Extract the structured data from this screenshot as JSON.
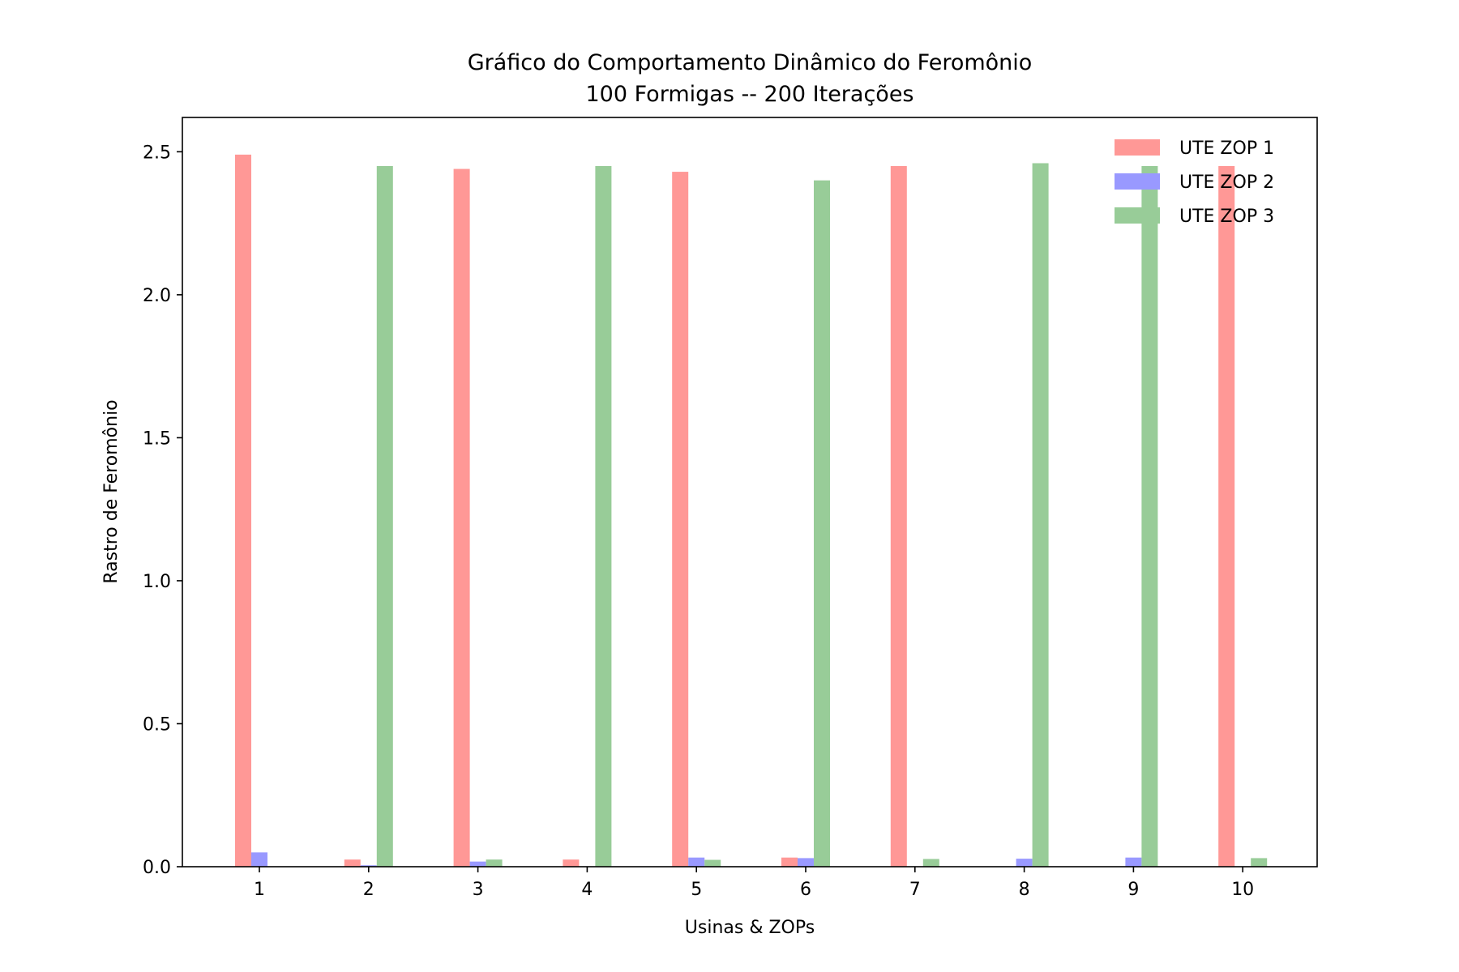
{
  "chart_data": {
    "type": "bar",
    "title": "Gráfico do Comportamento Dinâmico do Feromônio",
    "subtitle": "100 Formigas -- 200 Iterações",
    "xlabel": "Usinas & ZOPs",
    "ylabel": "Rastro de Feromônio",
    "categories": [
      "1",
      "2",
      "3",
      "4",
      "5",
      "6",
      "7",
      "8",
      "9",
      "10"
    ],
    "ylim": [
      0,
      2.62
    ],
    "yticks": [
      "0.0",
      "0.5",
      "1.0",
      "1.5",
      "2.0",
      "2.5"
    ],
    "grid": false,
    "legend_position": "top-right",
    "series": [
      {
        "name": "UTE ZOP 1",
        "color": "#ff9896",
        "values": [
          2.49,
          0.025,
          2.44,
          0.025,
          2.43,
          0.032,
          2.45,
          0.0,
          0.0,
          2.45
        ]
      },
      {
        "name": "UTE ZOP 2",
        "color": "#9999ff",
        "values": [
          0.05,
          0.005,
          0.018,
          0.0,
          0.032,
          0.03,
          0.0,
          0.028,
          0.032,
          0.0
        ]
      },
      {
        "name": "UTE ZOP 3",
        "color": "#98cc98",
        "values": [
          0.0,
          2.45,
          0.025,
          2.45,
          0.024,
          2.4,
          0.027,
          2.46,
          2.45,
          0.03
        ]
      }
    ]
  }
}
